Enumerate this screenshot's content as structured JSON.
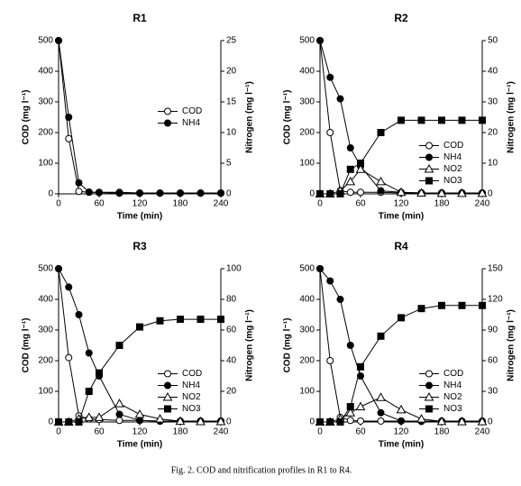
{
  "caption": "Fig. 2. COD and nitrification profiles in R1 to R4.",
  "chart_data": [
    {
      "type": "line",
      "title": "R1",
      "x_label": "Time (min)",
      "y_label": "COD (mg l⁻¹)",
      "y2_label": "Nitrogen (mg l⁻¹)",
      "x": [
        0,
        15,
        30,
        45,
        60,
        90,
        120,
        150,
        180,
        210,
        240
      ],
      "xlim": [
        0,
        240
      ],
      "xticks": [
        0,
        60,
        120,
        180,
        240
      ],
      "ylim": [
        0,
        500
      ],
      "yticks": [
        0,
        100,
        200,
        300,
        400,
        500
      ],
      "y2lim": [
        0,
        25
      ],
      "y2ticks": [
        0,
        5,
        10,
        15,
        20,
        25
      ],
      "legend": "center right",
      "series": [
        {
          "name": "COD",
          "color": "#000000",
          "marker": "open-circle",
          "values": [
            500,
            180,
            8,
            5,
            5,
            5,
            3,
            3,
            3,
            3,
            3
          ]
        },
        {
          "name": "NH4",
          "color": "#000000",
          "marker": "filled-circle",
          "axis": "y2",
          "values": [
            25,
            12.5,
            1.8,
            0.3,
            0.2,
            0.1,
            0.1,
            0.1,
            0.1,
            0.1,
            0.1
          ]
        }
      ]
    },
    {
      "type": "line",
      "title": "R2",
      "x_label": "Time (min)",
      "y_label": "COD (mg l⁻¹)",
      "y2_label": "Nitrogen (mg l⁻¹)",
      "x": [
        0,
        15,
        30,
        45,
        60,
        90,
        120,
        150,
        180,
        210,
        240
      ],
      "xlim": [
        0,
        240
      ],
      "xticks": [
        0,
        60,
        120,
        180,
        240
      ],
      "ylim": [
        0,
        500
      ],
      "yticks": [
        0,
        100,
        200,
        300,
        400,
        500
      ],
      "y2lim": [
        0,
        50
      ],
      "y2ticks": [
        0,
        10,
        20,
        30,
        40,
        50
      ],
      "legend": "lower right",
      "series": [
        {
          "name": "COD",
          "color": "#000000",
          "marker": "open-circle",
          "values": [
            500,
            200,
            10,
            5,
            5,
            5,
            3,
            3,
            3,
            3,
            3
          ]
        },
        {
          "name": "NH4",
          "color": "#000000",
          "marker": "filled-circle",
          "axis": "y2",
          "values": [
            50,
            38,
            31,
            15,
            9,
            1,
            0.5,
            0.3,
            0.3,
            0.3,
            0.3
          ]
        },
        {
          "name": "NO2",
          "color": "#000000",
          "marker": "open-triangle",
          "axis": "y2",
          "values": [
            0,
            0,
            1,
            4,
            8,
            4,
            0.5,
            0.3,
            0.2,
            0.2,
            0.2
          ]
        },
        {
          "name": "NO3",
          "color": "#000000",
          "marker": "filled-square",
          "axis": "y2",
          "values": [
            0,
            0,
            0,
            8,
            10,
            20,
            24,
            24,
            24,
            24,
            24
          ]
        }
      ]
    },
    {
      "type": "line",
      "title": "R3",
      "x_label": "Time (min)",
      "y_label": "COD (mg l⁻¹)",
      "y2_label": "Nitrogen (mg l⁻¹)",
      "x": [
        0,
        15,
        30,
        45,
        60,
        90,
        120,
        150,
        180,
        210,
        240
      ],
      "xlim": [
        0,
        240
      ],
      "xticks": [
        0,
        60,
        120,
        180,
        240
      ],
      "ylim": [
        0,
        500
      ],
      "yticks": [
        0,
        100,
        200,
        300,
        400,
        500
      ],
      "y2lim": [
        0,
        100
      ],
      "y2ticks": [
        0,
        20,
        40,
        60,
        80,
        100
      ],
      "legend": "lower right",
      "series": [
        {
          "name": "COD",
          "color": "#000000",
          "marker": "open-circle",
          "values": [
            500,
            210,
            20,
            10,
            8,
            5,
            5,
            3,
            3,
            3,
            3
          ]
        },
        {
          "name": "NH4",
          "color": "#000000",
          "marker": "filled-circle",
          "axis": "y2",
          "values": [
            100,
            88,
            70,
            45,
            30,
            5,
            1,
            0.5,
            0.5,
            0.5,
            0.5
          ]
        },
        {
          "name": "NO2",
          "color": "#000000",
          "marker": "open-triangle",
          "axis": "y2",
          "values": [
            0,
            0,
            2,
            3,
            3,
            12,
            5,
            2,
            0.5,
            0.3,
            0.3
          ]
        },
        {
          "name": "NO3",
          "color": "#000000",
          "marker": "filled-square",
          "axis": "y2",
          "values": [
            0,
            0,
            0,
            20,
            32,
            50,
            62,
            66,
            67,
            67,
            67
          ]
        }
      ]
    },
    {
      "type": "line",
      "title": "R4",
      "x_label": "Time (min)",
      "y_label": "COD (mg l⁻¹)",
      "y2_label": "Nitrogen (mg l⁻¹)",
      "x": [
        0,
        15,
        30,
        45,
        60,
        90,
        120,
        150,
        180,
        210,
        240
      ],
      "xlim": [
        0,
        240
      ],
      "xticks": [
        0,
        60,
        120,
        180,
        240
      ],
      "ylim": [
        0,
        500
      ],
      "yticks": [
        0,
        100,
        200,
        300,
        400,
        500
      ],
      "y2lim": [
        0,
        150
      ],
      "y2ticks": [
        0,
        30,
        60,
        90,
        120,
        150
      ],
      "legend": "lower right",
      "series": [
        {
          "name": "COD",
          "color": "#000000",
          "marker": "open-circle",
          "values": [
            500,
            200,
            15,
            5,
            3,
            3,
            3,
            3,
            3,
            3,
            3
          ]
        },
        {
          "name": "NH4",
          "color": "#000000",
          "marker": "filled-circle",
          "axis": "y2",
          "values": [
            150,
            138,
            120,
            75,
            45,
            9,
            1,
            0.5,
            0.3,
            0.3,
            0.3
          ]
        },
        {
          "name": "NO2",
          "color": "#000000",
          "marker": "open-triangle",
          "axis": "y2",
          "values": [
            0,
            0,
            3,
            9,
            15,
            24,
            12,
            3,
            0.5,
            0.3,
            0.3
          ]
        },
        {
          "name": "NO3",
          "color": "#000000",
          "marker": "filled-square",
          "axis": "y2",
          "values": [
            0,
            0,
            0,
            15,
            54,
            84,
            102,
            111,
            114,
            114,
            114
          ]
        }
      ]
    }
  ]
}
